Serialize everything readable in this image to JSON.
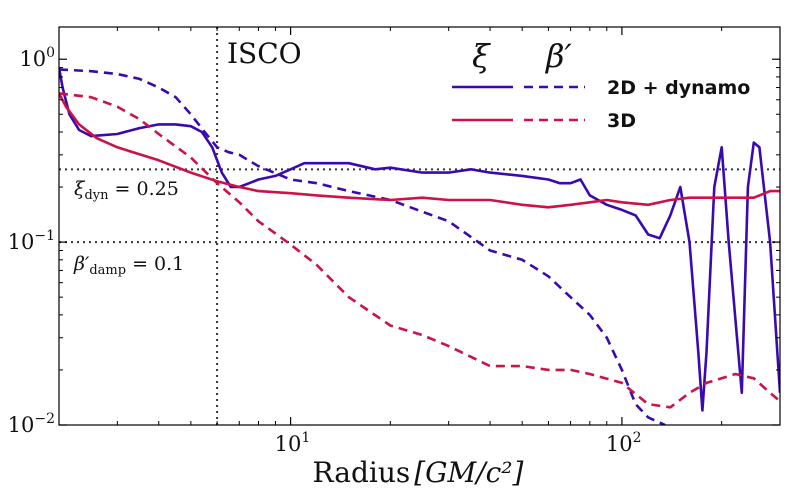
{
  "chart_data": {
    "type": "line",
    "xscale": "log",
    "yscale": "log",
    "xlim": [
      2,
      300
    ],
    "ylim": [
      0.01,
      1.5
    ],
    "xlabel_main": "Radius",
    "xlabel_unit": "[GM/c²]",
    "xticks": [
      {
        "value": 10,
        "base": "10",
        "exp": "1"
      },
      {
        "value": 100,
        "base": "10",
        "exp": "2"
      }
    ],
    "yticks": [
      {
        "value": 1,
        "base": "10",
        "exp": "0"
      },
      {
        "value": 0.1,
        "base": "10",
        "exp": "−1"
      },
      {
        "value": 0.01,
        "base": "10",
        "exp": "−2"
      }
    ],
    "reference_lines": [
      {
        "orientation": "vertical",
        "value": 6,
        "label": "ISCO"
      },
      {
        "orientation": "horizontal",
        "value": 0.25,
        "label_sym": "ξ",
        "label_sub": "dyn",
        "label_val": " = 0.25"
      },
      {
        "orientation": "horizontal",
        "value": 0.1,
        "label_sym": "β′",
        "label_sub": "damp",
        "label_val": " = 0.1"
      }
    ],
    "legend": {
      "placement": "top-right",
      "col_headers": [
        "ξ",
        "β′"
      ],
      "rows": [
        "2D + dynamo",
        "3D"
      ]
    },
    "colors": {
      "2d": "#3a0ab0",
      "3d": "#cc1246"
    },
    "series": [
      {
        "name": "ξ",
        "group": "2D + dynamo",
        "color": "#3a0ab0",
        "dash": "solid",
        "points": [
          [
            2,
            0.9
          ],
          [
            2.05,
            0.7
          ],
          [
            2.15,
            0.5
          ],
          [
            2.3,
            0.41
          ],
          [
            2.5,
            0.38
          ],
          [
            3,
            0.39
          ],
          [
            3.5,
            0.42
          ],
          [
            4,
            0.44
          ],
          [
            4.5,
            0.44
          ],
          [
            5,
            0.43
          ],
          [
            5.4,
            0.4
          ],
          [
            5.8,
            0.33
          ],
          [
            6.2,
            0.24
          ],
          [
            6.6,
            0.2
          ],
          [
            7,
            0.2
          ],
          [
            7.5,
            0.21
          ],
          [
            8,
            0.22
          ],
          [
            9,
            0.23
          ],
          [
            10,
            0.25
          ],
          [
            11,
            0.27
          ],
          [
            12,
            0.27
          ],
          [
            15,
            0.27
          ],
          [
            18,
            0.25
          ],
          [
            20,
            0.255
          ],
          [
            25,
            0.24
          ],
          [
            30,
            0.24
          ],
          [
            35,
            0.25
          ],
          [
            40,
            0.24
          ],
          [
            50,
            0.23
          ],
          [
            60,
            0.22
          ],
          [
            65,
            0.21
          ],
          [
            70,
            0.21
          ],
          [
            75,
            0.22
          ],
          [
            80,
            0.18
          ],
          [
            90,
            0.16
          ],
          [
            100,
            0.15
          ],
          [
            110,
            0.14
          ],
          [
            120,
            0.11
          ],
          [
            130,
            0.105
          ],
          [
            140,
            0.14
          ],
          [
            150,
            0.2
          ],
          [
            160,
            0.1
          ],
          [
            170,
            0.025
          ],
          [
            175,
            0.012
          ],
          [
            180,
            0.025
          ],
          [
            190,
            0.2
          ],
          [
            200,
            0.33
          ],
          [
            210,
            0.1
          ],
          [
            230,
            0.015
          ],
          [
            240,
            0.2
          ],
          [
            250,
            0.35
          ],
          [
            260,
            0.33
          ],
          [
            280,
            0.1
          ],
          [
            300,
            0.015
          ]
        ]
      },
      {
        "name": "β′",
        "group": "2D + dynamo",
        "color": "#3a0ab0",
        "dash": "dashed",
        "points": [
          [
            2,
            0.88
          ],
          [
            2.5,
            0.86
          ],
          [
            3,
            0.83
          ],
          [
            3.5,
            0.78
          ],
          [
            4,
            0.7
          ],
          [
            4.5,
            0.62
          ],
          [
            5,
            0.5
          ],
          [
            5.5,
            0.4
          ],
          [
            6,
            0.33
          ],
          [
            6.5,
            0.31
          ],
          [
            7,
            0.3
          ],
          [
            8,
            0.26
          ],
          [
            10,
            0.22
          ],
          [
            12,
            0.21
          ],
          [
            15,
            0.19
          ],
          [
            20,
            0.17
          ],
          [
            30,
            0.13
          ],
          [
            40,
            0.09
          ],
          [
            50,
            0.08
          ],
          [
            60,
            0.065
          ],
          [
            70,
            0.05
          ],
          [
            80,
            0.04
          ],
          [
            90,
            0.03
          ],
          [
            100,
            0.02
          ],
          [
            110,
            0.013
          ],
          [
            120,
            0.011
          ],
          [
            135,
            0.01
          ]
        ]
      },
      {
        "name": "ξ",
        "group": "3D",
        "color": "#cc1246",
        "dash": "solid",
        "points": [
          [
            2,
            0.65
          ],
          [
            2.1,
            0.55
          ],
          [
            2.3,
            0.44
          ],
          [
            2.6,
            0.37
          ],
          [
            3,
            0.33
          ],
          [
            4,
            0.28
          ],
          [
            5,
            0.24
          ],
          [
            6,
            0.215
          ],
          [
            7,
            0.2
          ],
          [
            8,
            0.19
          ],
          [
            10,
            0.185
          ],
          [
            12,
            0.18
          ],
          [
            15,
            0.175
          ],
          [
            20,
            0.17
          ],
          [
            25,
            0.175
          ],
          [
            30,
            0.17
          ],
          [
            40,
            0.17
          ],
          [
            50,
            0.16
          ],
          [
            60,
            0.155
          ],
          [
            70,
            0.16
          ],
          [
            80,
            0.165
          ],
          [
            90,
            0.17
          ],
          [
            100,
            0.165
          ],
          [
            120,
            0.16
          ],
          [
            140,
            0.17
          ],
          [
            160,
            0.175
          ],
          [
            200,
            0.175
          ],
          [
            250,
            0.175
          ],
          [
            280,
            0.19
          ],
          [
            300,
            0.19
          ]
        ]
      },
      {
        "name": "β′",
        "group": "3D",
        "color": "#cc1246",
        "dash": "dashed",
        "points": [
          [
            2,
            0.65
          ],
          [
            2.5,
            0.62
          ],
          [
            3,
            0.55
          ],
          [
            3.5,
            0.47
          ],
          [
            4,
            0.39
          ],
          [
            5,
            0.29
          ],
          [
            6,
            0.21
          ],
          [
            7,
            0.165
          ],
          [
            8,
            0.13
          ],
          [
            10,
            0.097
          ],
          [
            12,
            0.075
          ],
          [
            15,
            0.05
          ],
          [
            20,
            0.035
          ],
          [
            25,
            0.031
          ],
          [
            30,
            0.027
          ],
          [
            40,
            0.021
          ],
          [
            50,
            0.021
          ],
          [
            60,
            0.02
          ],
          [
            70,
            0.02
          ],
          [
            80,
            0.019
          ],
          [
            100,
            0.017
          ],
          [
            120,
            0.013
          ],
          [
            140,
            0.0125
          ],
          [
            160,
            0.015
          ],
          [
            180,
            0.017
          ],
          [
            200,
            0.018
          ],
          [
            220,
            0.019
          ],
          [
            250,
            0.018
          ],
          [
            280,
            0.015
          ],
          [
            300,
            0.0135
          ]
        ]
      }
    ]
  }
}
